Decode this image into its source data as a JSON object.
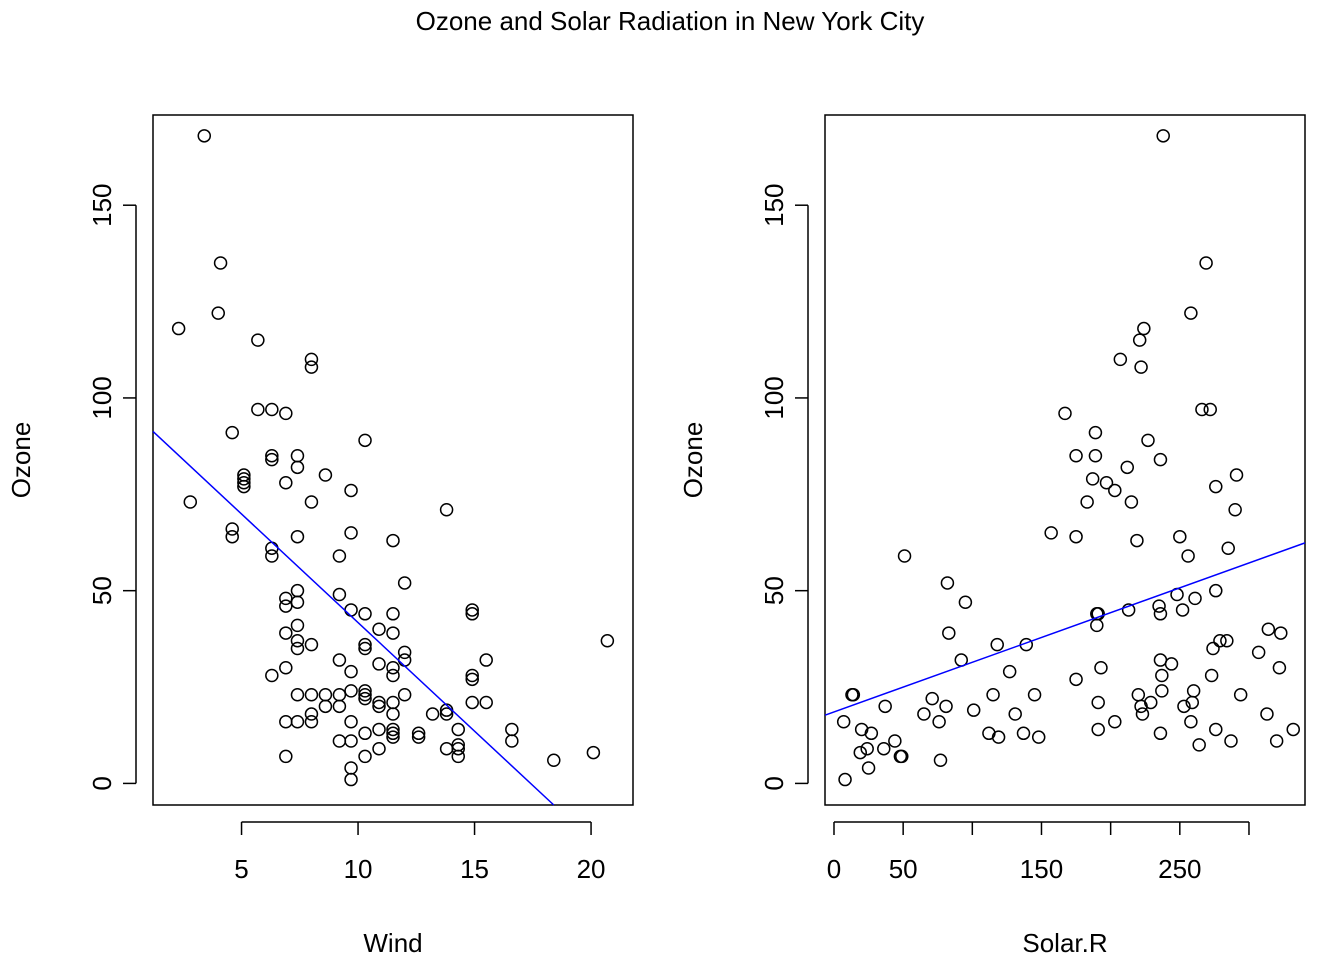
{
  "title": "Ozone and Solar Radiation in New York City",
  "colors": {
    "points": "#000000",
    "fit_line": "#0000ff",
    "axes": "#000000"
  },
  "chart_data": [
    {
      "type": "scatter",
      "xlabel": "Wind",
      "ylabel": "Ozone",
      "xlim": [
        1.2,
        21.8
      ],
      "ylim": [
        -5.6,
        173.4
      ],
      "xticks": [
        5,
        10,
        15,
        20
      ],
      "yticks": [
        0,
        50,
        100,
        150
      ],
      "grid": false,
      "fit_line": {
        "x0": 1.2,
        "y0": 91.3,
        "x1": 18.4,
        "y1": -5.6
      },
      "points": [
        [
          2.3,
          118
        ],
        [
          2.8,
          73
        ],
        [
          3.4,
          168
        ],
        [
          4.0,
          122
        ],
        [
          4.1,
          135
        ],
        [
          4.6,
          91
        ],
        [
          4.6,
          66
        ],
        [
          4.6,
          64
        ],
        [
          5.1,
          80
        ],
        [
          5.1,
          79
        ],
        [
          5.1,
          78
        ],
        [
          5.1,
          77
        ],
        [
          5.7,
          115
        ],
        [
          5.7,
          97
        ],
        [
          6.3,
          97
        ],
        [
          6.3,
          85
        ],
        [
          6.3,
          84
        ],
        [
          6.3,
          61
        ],
        [
          6.3,
          59
        ],
        [
          6.3,
          28
        ],
        [
          6.9,
          96
        ],
        [
          6.9,
          78
        ],
        [
          6.9,
          48
        ],
        [
          6.9,
          46
        ],
        [
          6.9,
          39
        ],
        [
          6.9,
          30
        ],
        [
          6.9,
          16
        ],
        [
          6.9,
          7
        ],
        [
          7.4,
          85
        ],
        [
          7.4,
          82
        ],
        [
          7.4,
          64
        ],
        [
          7.4,
          50
        ],
        [
          7.4,
          47
        ],
        [
          7.4,
          41
        ],
        [
          7.4,
          37
        ],
        [
          7.4,
          35
        ],
        [
          7.4,
          23
        ],
        [
          7.4,
          16
        ],
        [
          8.0,
          110
        ],
        [
          8.0,
          108
        ],
        [
          8.0,
          73
        ],
        [
          8.0,
          36
        ],
        [
          8.0,
          23
        ],
        [
          8.0,
          18
        ],
        [
          8.0,
          16
        ],
        [
          8.6,
          80
        ],
        [
          8.6,
          23
        ],
        [
          8.6,
          20
        ],
        [
          9.2,
          59
        ],
        [
          9.2,
          49
        ],
        [
          9.2,
          32
        ],
        [
          9.2,
          23
        ],
        [
          9.2,
          20
        ],
        [
          9.2,
          11
        ],
        [
          9.7,
          76
        ],
        [
          9.7,
          65
        ],
        [
          9.7,
          45
        ],
        [
          9.7,
          29
        ],
        [
          9.7,
          24
        ],
        [
          9.7,
          16
        ],
        [
          9.7,
          11
        ],
        [
          9.7,
          4
        ],
        [
          9.7,
          1
        ],
        [
          10.3,
          89
        ],
        [
          10.3,
          44
        ],
        [
          10.3,
          36
        ],
        [
          10.3,
          35
        ],
        [
          10.3,
          24
        ],
        [
          10.3,
          23
        ],
        [
          10.3,
          22
        ],
        [
          10.3,
          13
        ],
        [
          10.3,
          7
        ],
        [
          10.9,
          40
        ],
        [
          10.9,
          31
        ],
        [
          10.9,
          21
        ],
        [
          10.9,
          20
        ],
        [
          10.9,
          14
        ],
        [
          10.9,
          9
        ],
        [
          11.5,
          63
        ],
        [
          11.5,
          44
        ],
        [
          11.5,
          39
        ],
        [
          11.5,
          30
        ],
        [
          11.5,
          28
        ],
        [
          11.5,
          21
        ],
        [
          11.5,
          18
        ],
        [
          11.5,
          14
        ],
        [
          11.5,
          13
        ],
        [
          11.5,
          12
        ],
        [
          12.0,
          52
        ],
        [
          12.0,
          34
        ],
        [
          12.0,
          32
        ],
        [
          12.0,
          23
        ],
        [
          12.6,
          13
        ],
        [
          12.6,
          12
        ],
        [
          13.2,
          18
        ],
        [
          13.8,
          71
        ],
        [
          13.8,
          19
        ],
        [
          13.8,
          18
        ],
        [
          13.8,
          9
        ],
        [
          14.3,
          14
        ],
        [
          14.3,
          10
        ],
        [
          14.3,
          9
        ],
        [
          14.3,
          7
        ],
        [
          14.9,
          45
        ],
        [
          14.9,
          44
        ],
        [
          14.9,
          28
        ],
        [
          14.9,
          27
        ],
        [
          14.9,
          21
        ],
        [
          15.5,
          32
        ],
        [
          15.5,
          21
        ],
        [
          16.6,
          14
        ],
        [
          16.6,
          11
        ],
        [
          18.4,
          6
        ],
        [
          20.1,
          8
        ],
        [
          20.7,
          37
        ]
      ]
    },
    {
      "type": "scatter",
      "xlabel": "Solar.R",
      "ylabel": "Ozone",
      "xlim": [
        -6.5,
        340.5
      ],
      "ylim": [
        -5.6,
        173.4
      ],
      "xticks": [
        0,
        50,
        150,
        250
      ],
      "xticks_minor": [
        100,
        200,
        300
      ],
      "yticks": [
        0,
        50,
        100,
        150
      ],
      "grid": false,
      "fit_line": {
        "x0": -6.5,
        "y0": 17.7,
        "x1": 340.5,
        "y1": 62.4
      },
      "points": [
        [
          8,
          1
        ],
        [
          7,
          16
        ],
        [
          13,
          23
        ],
        [
          14,
          23
        ],
        [
          19,
          8
        ],
        [
          20,
          14
        ],
        [
          24,
          9
        ],
        [
          25,
          4
        ],
        [
          27,
          13
        ],
        [
          36,
          9
        ],
        [
          37,
          20
        ],
        [
          44,
          11
        ],
        [
          48,
          7
        ],
        [
          49,
          7
        ],
        [
          51,
          59
        ],
        [
          65,
          18
        ],
        [
          71,
          22
        ],
        [
          76,
          16
        ],
        [
          77,
          6
        ],
        [
          81,
          20
        ],
        [
          82,
          52
        ],
        [
          83,
          39
        ],
        [
          92,
          32
        ],
        [
          95,
          47
        ],
        [
          101,
          19
        ],
        [
          112,
          13
        ],
        [
          115,
          23
        ],
        [
          118,
          36
        ],
        [
          119,
          12
        ],
        [
          127,
          29
        ],
        [
          131,
          18
        ],
        [
          137,
          13
        ],
        [
          139,
          36
        ],
        [
          145,
          23
        ],
        [
          148,
          12
        ],
        [
          157,
          65
        ],
        [
          167,
          96
        ],
        [
          175,
          85
        ],
        [
          175,
          64
        ],
        [
          175,
          27
        ],
        [
          183,
          73
        ],
        [
          187,
          79
        ],
        [
          189,
          91
        ],
        [
          189,
          85
        ],
        [
          190,
          44
        ],
        [
          190,
          41
        ],
        [
          191,
          44
        ],
        [
          191,
          21
        ],
        [
          191,
          14
        ],
        [
          193,
          30
        ],
        [
          197,
          78
        ],
        [
          203,
          76
        ],
        [
          203,
          16
        ],
        [
          207,
          110
        ],
        [
          212,
          82
        ],
        [
          213,
          45
        ],
        [
          215,
          73
        ],
        [
          219,
          63
        ],
        [
          220,
          23
        ],
        [
          221,
          115
        ],
        [
          222,
          108
        ],
        [
          222,
          20
        ],
        [
          223,
          18
        ],
        [
          224,
          118
        ],
        [
          227,
          89
        ],
        [
          229,
          21
        ],
        [
          236,
          84
        ],
        [
          235,
          46
        ],
        [
          236,
          44
        ],
        [
          236,
          32
        ],
        [
          237,
          28
        ],
        [
          237,
          24
        ],
        [
          236,
          13
        ],
        [
          238,
          168
        ],
        [
          244,
          31
        ],
        [
          248,
          49
        ],
        [
          250,
          64
        ],
        [
          252,
          45
        ],
        [
          253,
          20
        ],
        [
          256,
          59
        ],
        [
          258,
          122
        ],
        [
          258,
          16
        ],
        [
          259,
          21
        ],
        [
          260,
          24
        ],
        [
          261,
          48
        ],
        [
          264,
          10
        ],
        [
          266,
          97
        ],
        [
          269,
          135
        ],
        [
          272,
          97
        ],
        [
          273,
          28
        ],
        [
          274,
          35
        ],
        [
          276,
          77
        ],
        [
          276,
          50
        ],
        [
          276,
          14
        ],
        [
          279,
          37
        ],
        [
          284,
          37
        ],
        [
          285,
          61
        ],
        [
          287,
          11
        ],
        [
          290,
          71
        ],
        [
          291,
          80
        ],
        [
          294,
          23
        ],
        [
          307,
          34
        ],
        [
          313,
          18
        ],
        [
          314,
          40
        ],
        [
          320,
          11
        ],
        [
          322,
          30
        ],
        [
          323,
          39
        ],
        [
          332,
          14
        ]
      ]
    }
  ]
}
